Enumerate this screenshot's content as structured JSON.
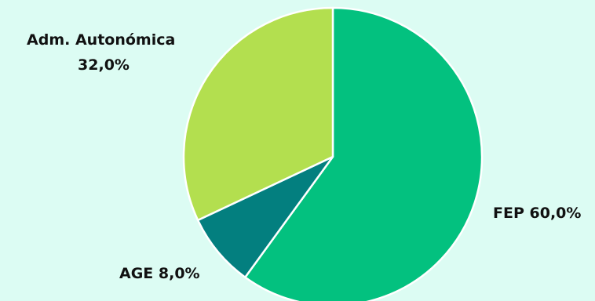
{
  "chart_data": {
    "type": "pie",
    "title": "",
    "slices": [
      {
        "name": "FEP",
        "value": 60.0,
        "label": "FEP 60,0%",
        "color": "#03c17f"
      },
      {
        "name": "AGE",
        "value": 8.0,
        "label": "AGE 8,0%",
        "color": "#037f7f"
      },
      {
        "name": "Adm. Autonómica",
        "value": 32.0,
        "label_lines": [
          "Adm. Autonómica",
          "32,0%"
        ],
        "color": "#b3df4f"
      }
    ],
    "start_angle": "12 o'clock",
    "direction": "clockwise",
    "slice_border_color": "#ffffff"
  }
}
